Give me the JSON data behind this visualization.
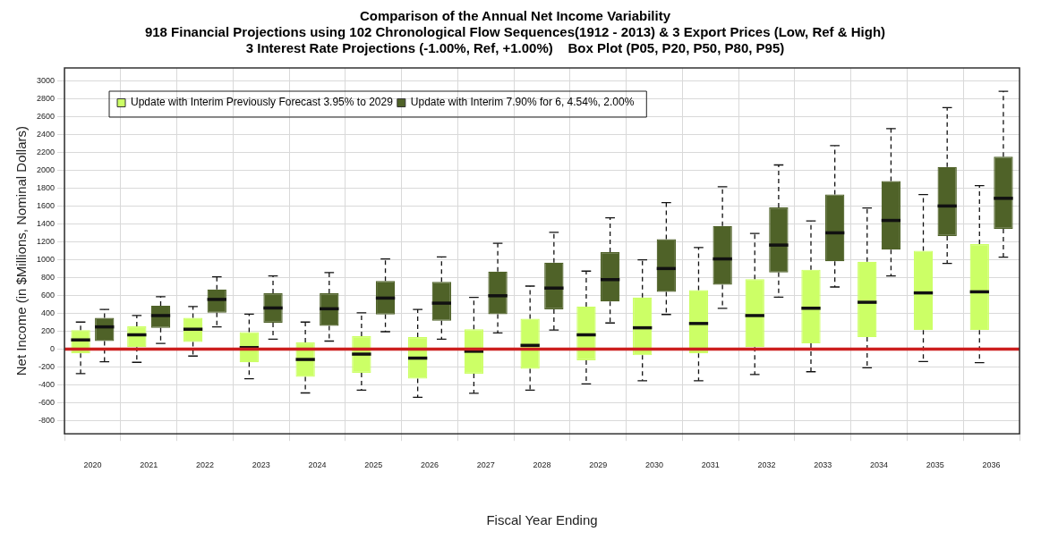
{
  "chart_data": {
    "type": "box",
    "title": "Comparison of the Annual Net Income Variability",
    "subtitle": "918 Financial Projections using 102 Chronological Flow Sequences(1912 - 2013) & 3 Export Prices (Low, Ref & High)\n3 Interest Rate Projections (-1.00%, Ref, +1.00%)    Box Plot (P05, P20, P50, P80, P95)",
    "xlabel": "Fiscal Year Ending",
    "ylabel": "Net Income (in $Millions, Nominal Dollars)",
    "categories": [
      "2020",
      "2021",
      "2022",
      "2023",
      "2024",
      "2025",
      "2026",
      "2027",
      "2028",
      "2029",
      "2030",
      "2031",
      "2032",
      "2033",
      "2034",
      "2035",
      "2036"
    ],
    "ylim": [
      -950,
      3150
    ],
    "yticks": [
      -800,
      -600,
      -400,
      -200,
      0,
      200,
      400,
      600,
      800,
      1000,
      1200,
      1400,
      1600,
      1800,
      2000,
      2200,
      2400,
      2600,
      2800,
      3000
    ],
    "grid": true,
    "legend": "top left",
    "ref_lines": [
      {
        "axis": "y",
        "value": 0,
        "color": "#cc1f1f"
      }
    ],
    "series": [
      {
        "name": "Update with Interim Previously Forecast 3.95% to 2029",
        "color": "#ccff66",
        "boxes": [
          {
            "low": -276,
            "q1": -48,
            "median": 102,
            "q3": 213,
            "high": 302
          },
          {
            "low": -149,
            "q1": 22,
            "median": 159,
            "q3": 254,
            "high": 375
          },
          {
            "low": -79,
            "q1": 79,
            "median": 222,
            "q3": 349,
            "high": 476
          },
          {
            "low": -333,
            "q1": -149,
            "median": 16,
            "q3": 190,
            "high": 390
          },
          {
            "low": -492,
            "q1": -311,
            "median": -117,
            "q3": 73,
            "high": 302
          },
          {
            "low": -460,
            "q1": -267,
            "median": -57,
            "q3": 143,
            "high": 406
          },
          {
            "low": -540,
            "q1": -333,
            "median": -102,
            "q3": 133,
            "high": 444
          },
          {
            "low": -495,
            "q1": -276,
            "median": -25,
            "q3": 222,
            "high": 578
          },
          {
            "low": -460,
            "q1": -222,
            "median": 41,
            "q3": 340,
            "high": 705
          },
          {
            "low": -390,
            "q1": -127,
            "median": 159,
            "q3": 476,
            "high": 873
          },
          {
            "low": -355,
            "q1": -70,
            "median": 238,
            "q3": 578,
            "high": 1000
          },
          {
            "low": -355,
            "q1": -48,
            "median": 286,
            "q3": 660,
            "high": 1137
          },
          {
            "low": -286,
            "q1": 22,
            "median": 375,
            "q3": 784,
            "high": 1295
          },
          {
            "low": -254,
            "q1": 63,
            "median": 457,
            "q3": 889,
            "high": 1435
          },
          {
            "low": -210,
            "q1": 133,
            "median": 524,
            "q3": 978,
            "high": 1581
          },
          {
            "low": -140,
            "q1": 213,
            "median": 629,
            "q3": 1102,
            "high": 1730
          },
          {
            "low": -152,
            "q1": 213,
            "median": 641,
            "q3": 1175,
            "high": 1832
          }
        ]
      },
      {
        "name": "Update with Interim 7.90% for 6, 4.54%, 2.00%",
        "color": "#4f6228",
        "boxes": [
          {
            "low": -143,
            "q1": 89,
            "median": 248,
            "q3": 349,
            "high": 444
          },
          {
            "low": 63,
            "q1": 238,
            "median": 375,
            "q3": 486,
            "high": 587
          },
          {
            "low": 248,
            "q1": 406,
            "median": 556,
            "q3": 667,
            "high": 810
          },
          {
            "low": 111,
            "q1": 295,
            "median": 460,
            "q3": 625,
            "high": 819
          },
          {
            "low": 89,
            "q1": 260,
            "median": 451,
            "q3": 625,
            "high": 857
          },
          {
            "low": 194,
            "q1": 387,
            "median": 571,
            "q3": 762,
            "high": 1010
          },
          {
            "low": 111,
            "q1": 317,
            "median": 514,
            "q3": 752,
            "high": 1032
          },
          {
            "low": 181,
            "q1": 390,
            "median": 597,
            "q3": 867,
            "high": 1184
          },
          {
            "low": 213,
            "q1": 444,
            "median": 683,
            "q3": 968,
            "high": 1308
          },
          {
            "low": 292,
            "q1": 533,
            "median": 778,
            "q3": 1086,
            "high": 1470
          },
          {
            "low": 387,
            "q1": 641,
            "median": 902,
            "q3": 1232,
            "high": 1641
          },
          {
            "low": 457,
            "q1": 721,
            "median": 1010,
            "q3": 1378,
            "high": 1819
          },
          {
            "low": 581,
            "q1": 857,
            "median": 1165,
            "q3": 1587,
            "high": 2063
          },
          {
            "low": 695,
            "q1": 984,
            "median": 1302,
            "q3": 1733,
            "high": 2279
          },
          {
            "low": 819,
            "q1": 1114,
            "median": 1441,
            "q3": 1883,
            "high": 2470
          },
          {
            "low": 959,
            "q1": 1267,
            "median": 1603,
            "q3": 2041,
            "high": 2705
          },
          {
            "low": 1029,
            "q1": 1346,
            "median": 1689,
            "q3": 2156,
            "high": 2889
          }
        ]
      }
    ]
  }
}
